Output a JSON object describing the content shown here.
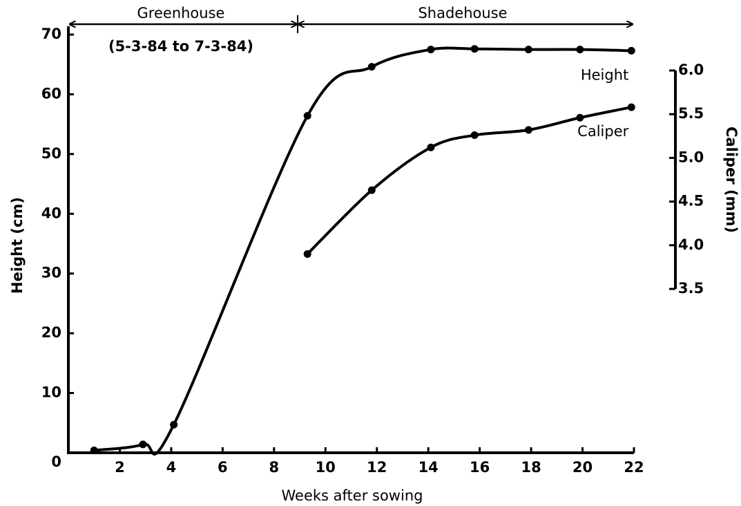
{
  "chart_data": {
    "type": "line",
    "xlabel": "Weeks after sowing",
    "ylabel": "Height  (cm)",
    "y2label": "Caliper  (mm)",
    "annotations": [
      "Greenhouse",
      "(5-3-84 to 7-3-84)",
      "Shadehouse"
    ],
    "xlim": [
      0,
      22
    ],
    "xticks": [
      2,
      4,
      6,
      8,
      10,
      12,
      14,
      16,
      18,
      20,
      22
    ],
    "ylim": [
      0,
      70
    ],
    "yticks": [
      0,
      10,
      20,
      30,
      40,
      50,
      60,
      70
    ],
    "y2lim": [
      3.5,
      6
    ],
    "y2ticks": [
      {
        "value": 6,
        "label": "6.0"
      },
      5.5,
      {
        "value": 5,
        "label": "5.0"
      },
      4.5,
      {
        "value": 4,
        "label": "4.0"
      },
      3.5
    ],
    "series": [
      {
        "name": "Height",
        "color": "#000000",
        "x": [
          1.0,
          2.9,
          4.1,
          9.3,
          11.8,
          14.1,
          15.8,
          17.9,
          19.9,
          21.9
        ],
        "values": [
          0.4,
          1.4,
          4.7,
          56.4,
          64.6,
          67.5,
          67.6,
          67.5,
          67.5,
          67.3
        ]
      },
      {
        "name": "Caliper",
        "color": "#000000",
        "axis": "y2",
        "x": [
          9.3,
          11.8,
          14.1,
          15.8,
          17.9,
          19.9,
          21.9
        ],
        "values": [
          3.9,
          4.63,
          5.12,
          5.26,
          5.32,
          5.46,
          5.58
        ]
      }
    ]
  }
}
